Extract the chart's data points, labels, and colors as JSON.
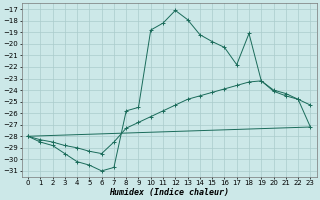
{
  "xlabel": "Humidex (Indice chaleur)",
  "bg_color": "#cce8e8",
  "grid_color": "#aacccc",
  "line_color": "#1a6b5a",
  "xlim": [
    -0.5,
    23.5
  ],
  "ylim": [
    -31.5,
    -16.5
  ],
  "xticks": [
    0,
    1,
    2,
    3,
    4,
    5,
    6,
    7,
    8,
    9,
    10,
    11,
    12,
    13,
    14,
    15,
    16,
    17,
    18,
    19,
    20,
    21,
    22,
    23
  ],
  "yticks": [
    -31,
    -30,
    -29,
    -28,
    -27,
    -26,
    -25,
    -24,
    -23,
    -22,
    -21,
    -20,
    -19,
    -18,
    -17
  ],
  "line1_x": [
    0,
    1,
    2,
    3,
    4,
    5,
    6,
    7,
    8,
    9,
    10,
    11,
    12,
    13,
    14,
    15,
    16,
    17,
    18,
    19,
    20,
    21,
    22,
    23
  ],
  "line1_y": [
    -28,
    -28.5,
    -28.8,
    -29.5,
    -30.2,
    -30.5,
    -31.0,
    -30.7,
    -25.8,
    -25.5,
    -18.8,
    -18.2,
    -17.1,
    -17.9,
    -19.2,
    -19.8,
    -20.3,
    -21.8,
    -19.1,
    -23.2,
    -24.1,
    -24.5,
    -24.8,
    -25.3
  ],
  "line2_x": [
    0,
    1,
    2,
    3,
    4,
    5,
    6,
    7,
    8,
    9,
    10,
    11,
    12,
    13,
    14,
    15,
    16,
    17,
    18,
    19,
    20,
    21,
    22,
    23
  ],
  "line2_y": [
    -28,
    -28.3,
    -28.5,
    -28.8,
    -29.0,
    -29.3,
    -29.5,
    -28.5,
    -27.3,
    -26.8,
    -26.3,
    -25.8,
    -25.3,
    -24.8,
    -24.5,
    -24.2,
    -23.9,
    -23.6,
    -23.3,
    -23.2,
    -24.0,
    -24.3,
    -24.8,
    -27.2
  ],
  "line3_x": [
    0,
    23
  ],
  "line3_y": [
    -28.0,
    -27.2
  ]
}
